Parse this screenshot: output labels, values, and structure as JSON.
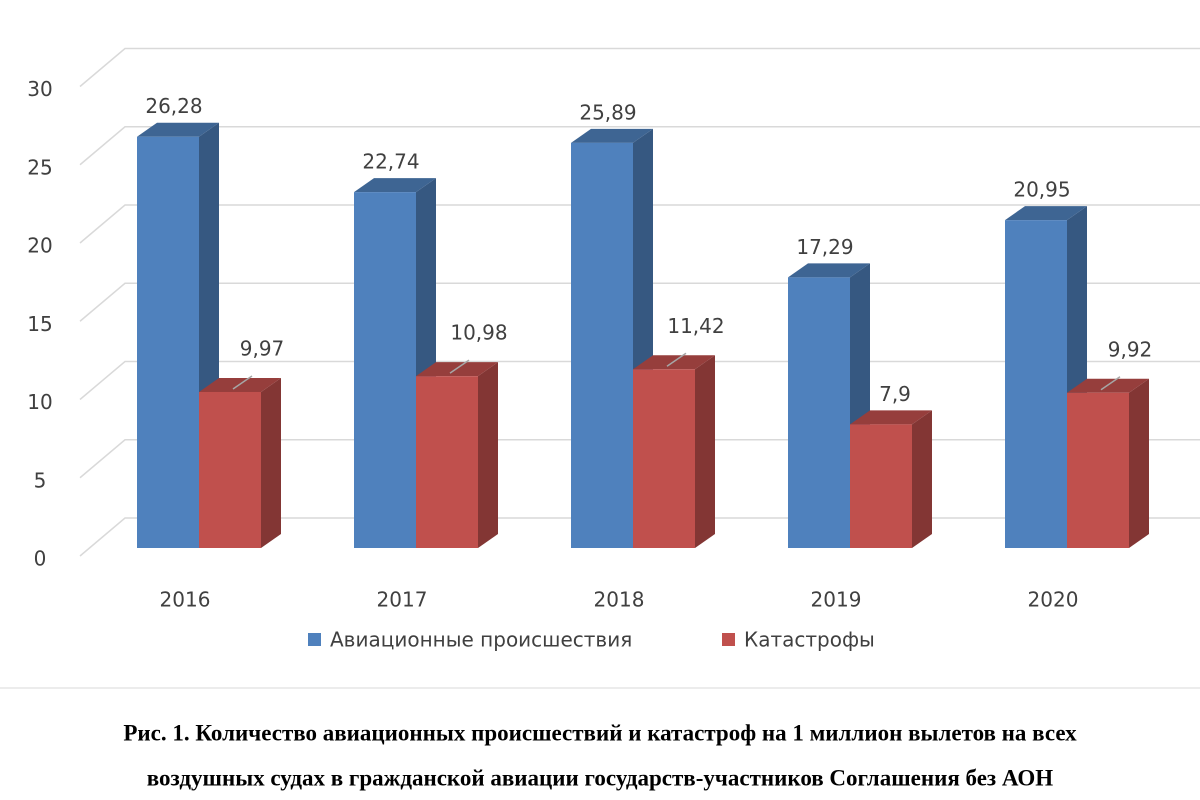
{
  "chart_data": {
    "type": "bar3d",
    "categories": [
      "2016",
      "2017",
      "2018",
      "2019",
      "2020"
    ],
    "series": [
      {
        "name": "Авиационные происшествия",
        "color": "#4f81bd",
        "values": [
          26.28,
          22.74,
          25.89,
          17.29,
          20.95
        ],
        "value_labels": [
          "26,28",
          "22,74",
          "25,89",
          "17,29",
          "20,95"
        ]
      },
      {
        "name": "Катастрофы",
        "color": "#c0504d",
        "values": [
          9.97,
          10.98,
          11.42,
          7.9,
          9.92
        ],
        "value_labels": [
          "9,97",
          "10,98",
          "11,42",
          "7,9",
          "9,92"
        ]
      }
    ],
    "ylim": [
      0,
      30
    ],
    "yticks": [
      0,
      5,
      10,
      15,
      20,
      25,
      30
    ],
    "grid": true,
    "legend": "bottom",
    "caption": [
      "Рис. 1. Количество авиационных происшествий и катастроф на 1 миллион вылетов на всех",
      "воздушных судах в гражданской авиации государств-участников Соглашения без АОН"
    ]
  }
}
